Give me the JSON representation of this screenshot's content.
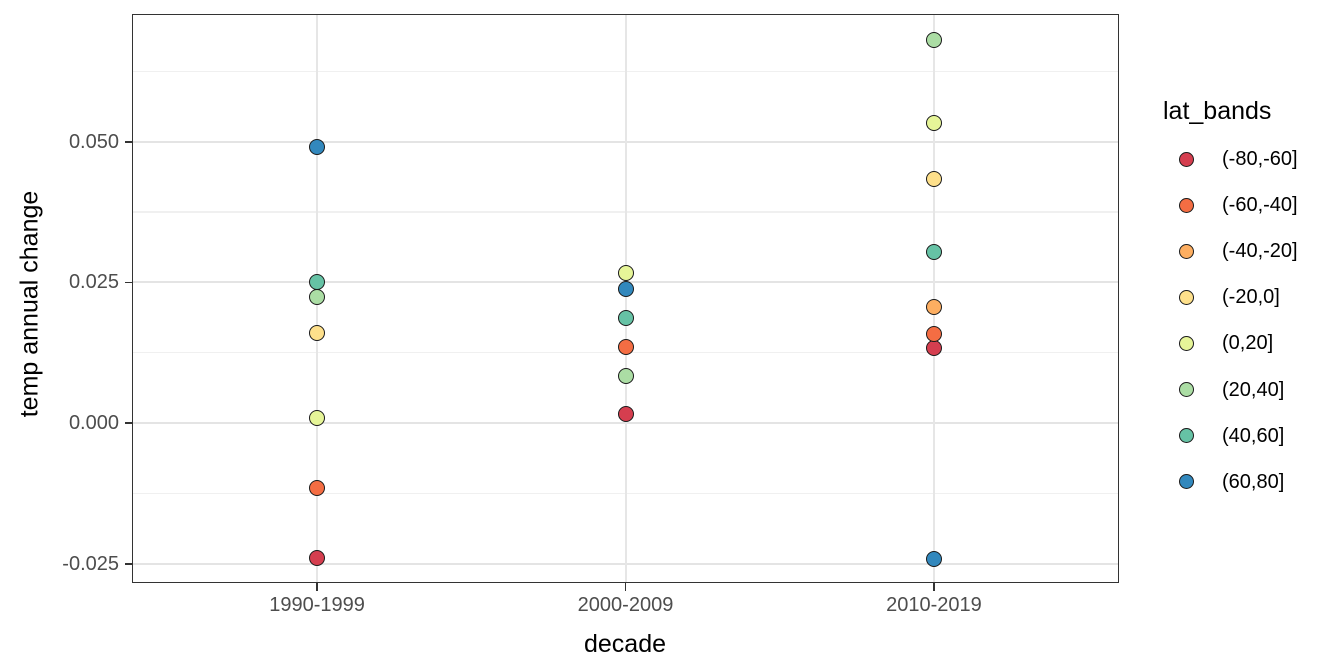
{
  "chart_data": {
    "type": "scatter",
    "title": "",
    "xlabel": "decade",
    "ylabel": "temp annual change",
    "legend_title": "lat_bands",
    "legend_position": "right",
    "grid": true,
    "categories": [
      "1990-1999",
      "2000-2009",
      "2010-2019"
    ],
    "y_ticks": [
      {
        "value": 0.05,
        "label": "0.050"
      },
      {
        "value": 0.025,
        "label": "0.025"
      },
      {
        "value": 0.0,
        "label": "0.000"
      },
      {
        "value": -0.025,
        "label": "-0.025"
      }
    ],
    "y_minor": [
      0.0625,
      0.0375,
      0.0125,
      -0.0125
    ],
    "ylim": [
      -0.0284,
      0.0727
    ],
    "point_outline_color": "#1a1a1a",
    "series": [
      {
        "name": "(-80,-60]",
        "color": "#d53e4f",
        "values": [
          -0.024,
          0.0017,
          0.0133
        ]
      },
      {
        "name": "(-60,-40]",
        "color": "#f46d43",
        "values": [
          -0.0115,
          0.0135,
          0.0158
        ]
      },
      {
        "name": "(-40,-20]",
        "color": "#fdae61",
        "values": [
          null,
          null,
          0.0207
        ]
      },
      {
        "name": "(-20,0]",
        "color": "#fee08b",
        "values": [
          0.016,
          null,
          0.0433
        ]
      },
      {
        "name": "(0,20]",
        "color": "#e6f598",
        "values": [
          0.001,
          0.0267,
          0.0533
        ]
      },
      {
        "name": "(20,40]",
        "color": "#abdda4",
        "values": [
          0.0225,
          0.0083,
          0.068
        ]
      },
      {
        "name": "(40,60]",
        "color": "#66c2a5",
        "values": [
          0.025,
          0.0186,
          0.0305
        ]
      },
      {
        "name": "(60,80]",
        "color": "#3288bd",
        "values": [
          0.049,
          0.0238,
          -0.0241
        ]
      }
    ],
    "theme": {
      "major_grid_color": "#e4e4e4",
      "minor_grid_color": "#f0f0f0",
      "panel_border_color": "#333333",
      "tick_label_color": "#4d4d4d",
      "axis_title_color": "#000000"
    }
  }
}
